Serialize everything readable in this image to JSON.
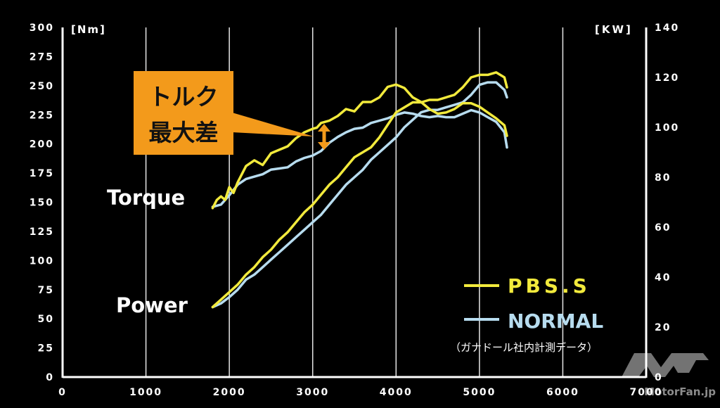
{
  "chart_data": {
    "type": "line",
    "left_axis_unit": "[Nm]",
    "right_axis_unit": "[KW]",
    "x_ticks": [
      "0",
      "1000",
      "2000",
      "3000",
      "4000",
      "5000",
      "6000",
      "7000"
    ],
    "y_left_ticks": [
      "0",
      "25",
      "50",
      "75",
      "100",
      "125",
      "150",
      "175",
      "200",
      "225",
      "250",
      "275",
      "300"
    ],
    "y_right_ticks": [
      "0",
      "20",
      "40",
      "60",
      "80",
      "100",
      "120",
      "140"
    ],
    "xlim": [
      0,
      7000
    ],
    "ylim_left": [
      0,
      300
    ],
    "ylim_right": [
      0,
      140
    ],
    "grid": "vertical",
    "curve_labels": {
      "torque": "Torque",
      "power": "Power"
    },
    "legend": {
      "position": "bottom-right",
      "note": "（ガナドール社内計測データ）"
    },
    "annotation": {
      "line1": "トルク",
      "line2": "最大差"
    },
    "series": [
      {
        "name": "PBS.S",
        "kind": "torque",
        "axis": "left",
        "color": "#f2ea3c",
        "x": [
          1800,
          1850,
          1900,
          1950,
          2000,
          2050,
          2100,
          2200,
          2300,
          2400,
          2500,
          2600,
          2700,
          2800,
          2900,
          3000,
          3050,
          3100,
          3200,
          3300,
          3400,
          3500,
          3600,
          3700,
          3800,
          3900,
          4000,
          4100,
          4200,
          4300,
          4400,
          4500,
          4600,
          4700,
          4800,
          4900,
          5000,
          5100,
          5200,
          5300,
          5330
        ],
        "y": [
          145,
          152,
          155,
          152,
          163,
          158,
          167,
          181,
          186,
          182,
          192,
          195,
          198,
          205,
          210,
          213,
          214,
          218,
          220,
          224,
          230,
          228,
          236,
          236,
          240,
          249,
          251,
          248,
          240,
          236,
          230,
          226,
          227,
          230,
          235,
          235,
          232,
          227,
          222,
          216,
          207
        ]
      },
      {
        "name": "NORMAL",
        "kind": "torque",
        "axis": "left",
        "color": "#b7dcef",
        "x": [
          1800,
          1900,
          2000,
          2100,
          2200,
          2300,
          2400,
          2500,
          2600,
          2700,
          2800,
          2900,
          3000,
          3100,
          3200,
          3300,
          3400,
          3500,
          3600,
          3700,
          3800,
          3900,
          4000,
          4100,
          4200,
          4300,
          4400,
          4500,
          4600,
          4700,
          4800,
          4900,
          5000,
          5100,
          5200,
          5300,
          5330
        ],
        "y": [
          146,
          148,
          156,
          165,
          170,
          172,
          174,
          178,
          179,
          180,
          185,
          188,
          190,
          194,
          201,
          206,
          210,
          213,
          214,
          218,
          220,
          222,
          225,
          227,
          226,
          224,
          223,
          224,
          223,
          223,
          226,
          229,
          227,
          223,
          219,
          210,
          197
        ]
      },
      {
        "name": "PBS.S",
        "kind": "power",
        "axis": "right",
        "color": "#f2ea3c",
        "x": [
          1800,
          1900,
          2000,
          2100,
          2200,
          2300,
          2400,
          2500,
          2600,
          2700,
          2800,
          2900,
          3000,
          3100,
          3200,
          3300,
          3400,
          3500,
          3600,
          3700,
          3800,
          3900,
          4000,
          4100,
          4200,
          4300,
          4400,
          4500,
          4600,
          4700,
          4800,
          4900,
          5000,
          5100,
          5200,
          5300,
          5330
        ],
        "y": [
          28,
          31,
          34,
          37,
          41,
          44,
          48,
          51,
          55,
          58,
          62,
          66,
          69,
          73,
          77,
          80,
          84,
          88,
          90,
          92,
          96,
          101,
          106,
          108,
          110,
          110,
          111,
          111,
          112,
          113,
          116,
          120,
          121,
          121,
          122,
          120,
          116
        ]
      },
      {
        "name": "NORMAL",
        "kind": "power",
        "axis": "right",
        "color": "#b7dcef",
        "x": [
          1800,
          1900,
          2000,
          2100,
          2200,
          2300,
          2400,
          2500,
          2600,
          2700,
          2800,
          2900,
          3000,
          3100,
          3200,
          3300,
          3400,
          3500,
          3600,
          3700,
          3800,
          3900,
          4000,
          4100,
          4200,
          4300,
          4400,
          4500,
          4600,
          4700,
          4800,
          4900,
          5000,
          5100,
          5200,
          5300,
          5330
        ],
        "y": [
          28,
          29.5,
          32,
          35,
          39,
          41,
          44,
          47,
          50,
          53,
          56,
          59,
          62,
          65,
          69,
          73,
          77,
          80,
          83,
          87,
          90,
          93,
          96,
          100,
          103,
          106,
          107,
          107,
          108,
          109,
          110,
          113,
          117,
          118,
          118,
          115,
          112
        ]
      }
    ]
  },
  "watermark": "MotorFan.jp"
}
